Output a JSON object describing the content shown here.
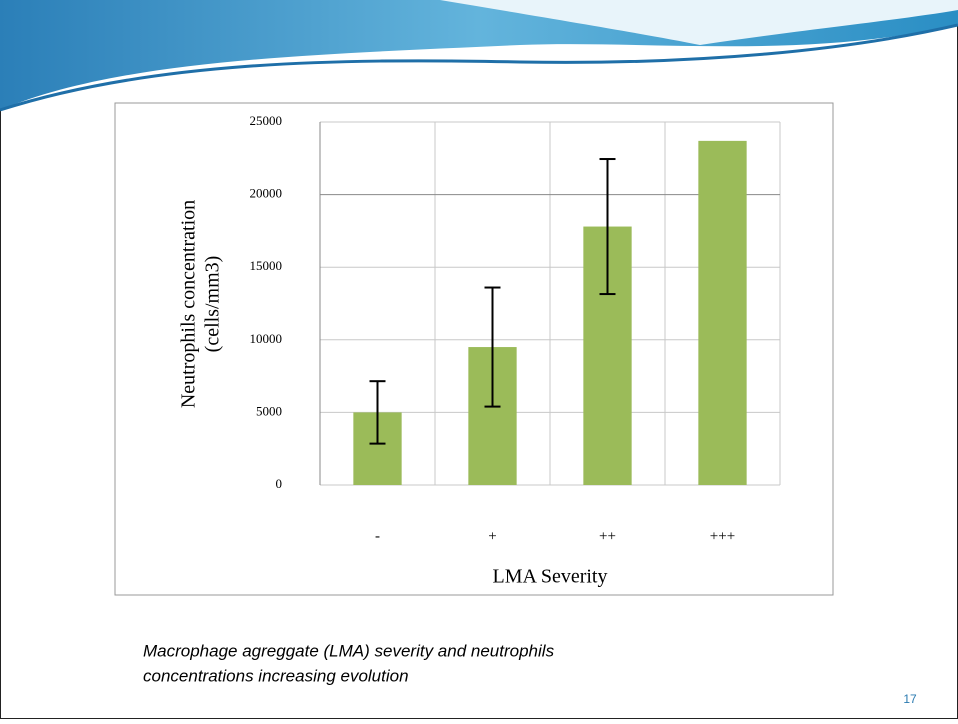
{
  "chart_data": {
    "type": "bar",
    "categories": [
      "-",
      "+",
      "++",
      "+++"
    ],
    "values": [
      5000,
      9500,
      17800,
      23700
    ],
    "errors": [
      2150,
      4100,
      4650,
      null
    ],
    "color": "#9bbb59",
    "ylim": [
      0,
      25000
    ],
    "yticks": [
      0,
      5000,
      10000,
      15000,
      20000,
      25000
    ],
    "grid": true,
    "x_label": "LMA Severity",
    "y_label": [
      "Neutrophils concentration",
      "(cells/mm3)"
    ]
  },
  "caption": [
    "Macrophage agreggate (LMA) severity and neutrophils",
    "concentrations increasing evolution"
  ],
  "page_number": "17"
}
